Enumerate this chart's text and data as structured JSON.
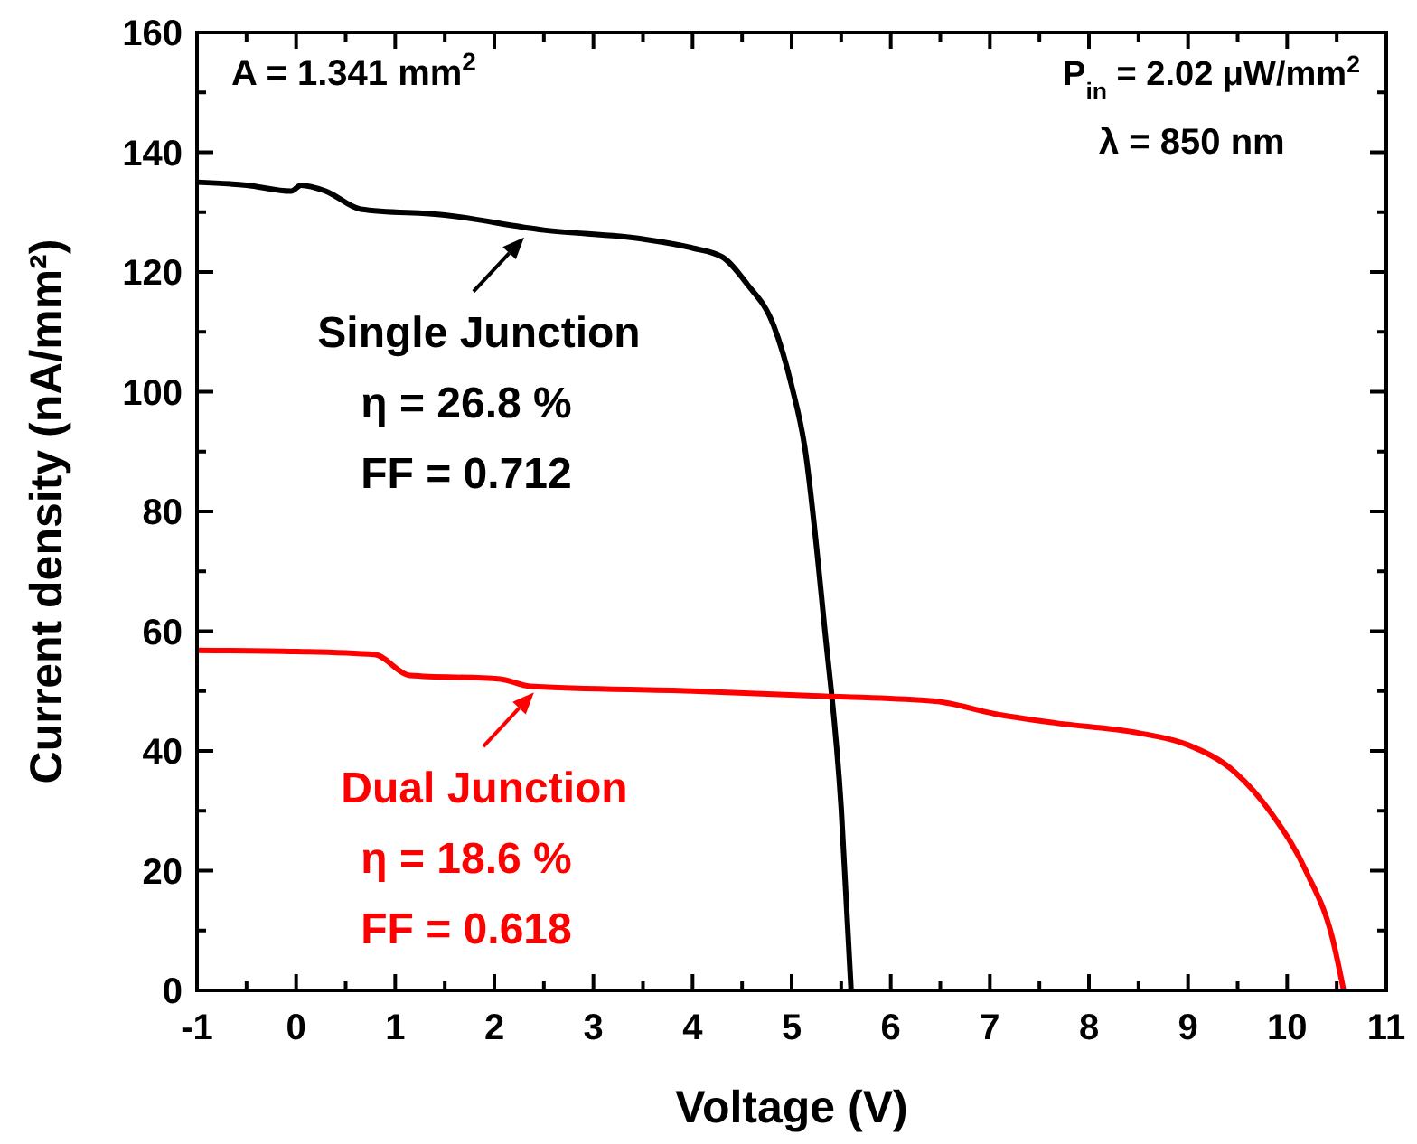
{
  "chart_data": {
    "type": "line",
    "xlabel": "Voltage (V)",
    "ylabel": "Current density (nA/mm²)",
    "xlim": [
      -1,
      11
    ],
    "xticks": [
      -1,
      0,
      1,
      2,
      3,
      4,
      5,
      6,
      7,
      8,
      9,
      10,
      11
    ],
    "ylim": [
      0,
      160
    ],
    "yticks": [
      0,
      20,
      40,
      60,
      80,
      100,
      120,
      140,
      160
    ],
    "grid": false,
    "marker": "none",
    "line_style": "solid",
    "series": [
      {
        "color": "#000000",
        "x": [
          -1,
          -0.5,
          -0.05,
          0.05,
          0.3,
          0.65,
          1.5,
          2.5,
          3.5,
          4,
          4.3,
          4.55,
          4.82,
          5.0,
          5.13,
          5.33,
          5.5,
          5.6
        ],
        "values": [
          135,
          134.5,
          133.5,
          134.5,
          133.5,
          130.5,
          129.5,
          127,
          125.5,
          124,
          122.5,
          118,
          111,
          101,
          91,
          61,
          30.5,
          0
        ]
      },
      {
        "color": "#ff0000",
        "x": [
          -1,
          0,
          0.79,
          1.15,
          2.06,
          2.36,
          4,
          5.22,
          6.45,
          7.05,
          7.65,
          8.5,
          9,
          9.47,
          9.84,
          10.2,
          10.46,
          10.57
        ],
        "values": [
          56.8,
          56.6,
          56.1,
          52.6,
          52.0,
          50.8,
          50,
          49.2,
          48.3,
          46.2,
          44.7,
          43,
          41,
          36.5,
          29.6,
          19.6,
          8.5,
          0
        ]
      }
    ],
    "annotations": [
      "A  = 1.341 mm$^{2}$",
      "P$_{in}$ = 2.02 μW/mm$^{2}$",
      "λ = 850 nm",
      {
        "text": "Single Junction",
        "x": 2.3,
        "y": 127
      },
      "η = 26.8 %",
      "FF = 0.712",
      {
        "text": "Dual Junction",
        "x": 2.4,
        "y": 51
      },
      "η = 18.6 %",
      "FF = 0.618"
    ]
  }
}
